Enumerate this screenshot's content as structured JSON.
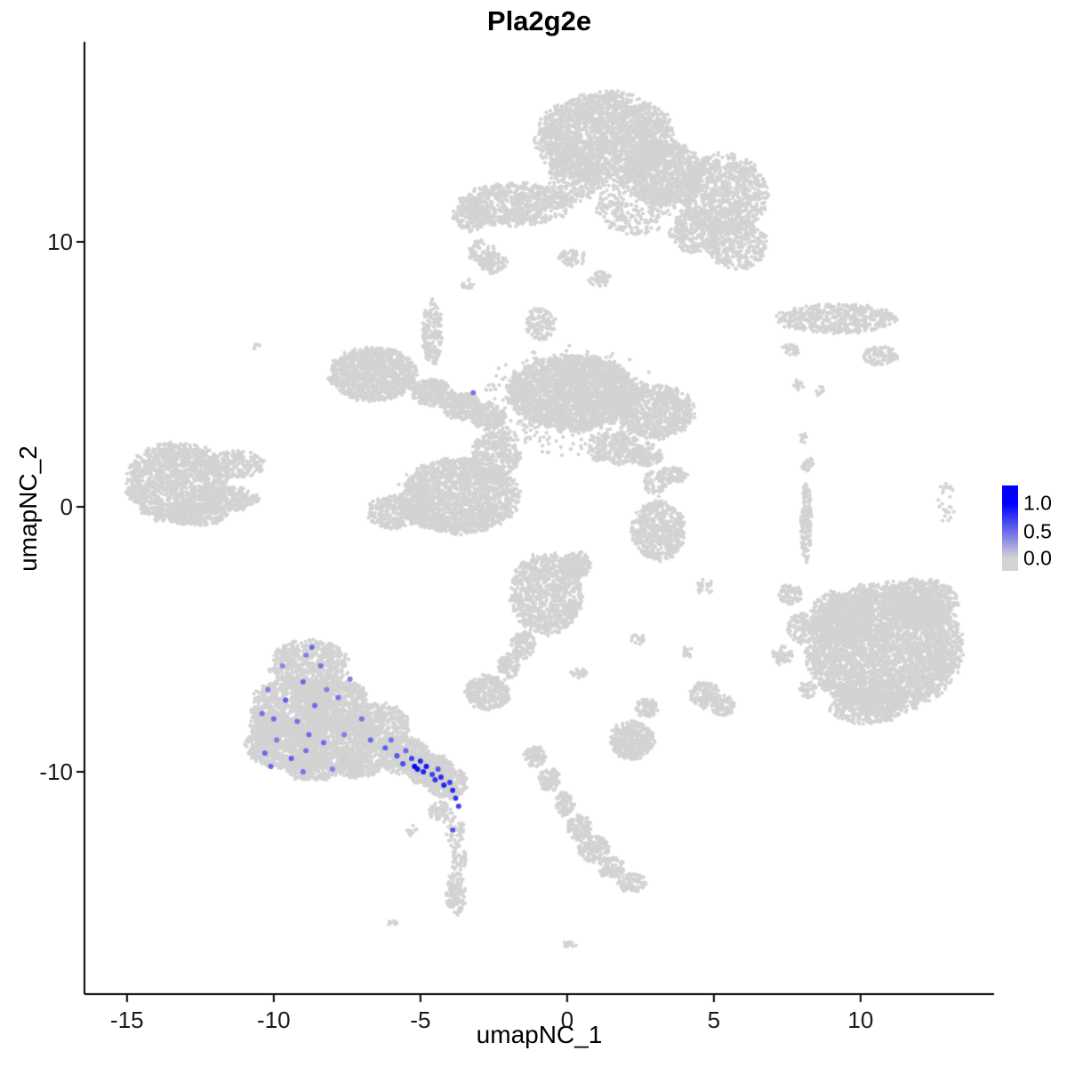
{
  "chart_data": {
    "type": "scatter",
    "title": "Pla2g2e",
    "xlabel": "umapNC_1",
    "ylabel": "umapNC_2",
    "xlim": [
      -16.45,
      14.55
    ],
    "ylim": [
      -18.39,
      17.55
    ],
    "x_ticks": [
      -15,
      -10,
      -5,
      0,
      5,
      10
    ],
    "y_ticks": [
      -10,
      0,
      10
    ],
    "grid": false,
    "axis_color": "#000000",
    "point_color_low": "#D3D3D3",
    "point_color_high": "#0000FF",
    "background_point_radius": 2.1,
    "expressing_point_radius": 3.0,
    "cluster_format": [
      "cx",
      "cy",
      "rx",
      "ry",
      "n"
    ],
    "background_clusters": [
      [
        1.3,
        13.9,
        2.3,
        1.7,
        2400
      ],
      [
        3.3,
        12.6,
        1.3,
        1.2,
        800
      ],
      [
        5.3,
        11.8,
        1.5,
        1.5,
        1000
      ],
      [
        5.8,
        9.9,
        1.0,
        0.9,
        350
      ],
      [
        4.4,
        10.4,
        0.9,
        0.8,
        300
      ],
      [
        -1.8,
        11.4,
        1.9,
        0.8,
        750
      ],
      [
        -3.3,
        11.0,
        0.6,
        0.6,
        150
      ],
      [
        0.3,
        12.4,
        0.9,
        0.9,
        250
      ],
      [
        2.3,
        11.3,
        1.3,
        1.0,
        300
      ],
      [
        -2.9,
        9.6,
        0.5,
        0.45,
        80
      ],
      [
        0.2,
        9.4,
        0.5,
        0.3,
        50
      ],
      [
        1.1,
        8.6,
        0.4,
        0.3,
        40
      ],
      [
        -2.5,
        9.2,
        0.5,
        0.4,
        80
      ],
      [
        -3.4,
        8.4,
        0.25,
        0.2,
        15
      ],
      [
        9.2,
        7.1,
        2.0,
        0.55,
        500
      ],
      [
        10.7,
        5.7,
        0.6,
        0.35,
        100
      ],
      [
        7.6,
        5.9,
        0.3,
        0.25,
        30
      ],
      [
        7.9,
        4.6,
        0.2,
        0.2,
        12
      ],
      [
        8.6,
        4.4,
        0.2,
        0.2,
        10
      ],
      [
        0.2,
        4.3,
        2.2,
        1.4,
        2600
      ],
      [
        3.0,
        3.6,
        1.3,
        1.0,
        700
      ],
      [
        -6.6,
        5.0,
        1.5,
        1.0,
        1100
      ],
      [
        -4.6,
        4.3,
        0.7,
        0.5,
        250
      ],
      [
        -3.6,
        3.8,
        0.7,
        0.5,
        250
      ],
      [
        -2.7,
        3.4,
        0.6,
        0.5,
        200
      ],
      [
        -4.6,
        6.6,
        0.35,
        1.2,
        180
      ],
      [
        -0.9,
        6.9,
        0.5,
        0.6,
        120
      ],
      [
        -3.7,
        0.4,
        2.0,
        1.4,
        1900
      ],
      [
        -5.9,
        -0.2,
        0.9,
        0.6,
        300
      ],
      [
        -2.4,
        2.0,
        0.8,
        0.9,
        350
      ],
      [
        1.6,
        2.2,
        0.9,
        0.6,
        250
      ],
      [
        2.7,
        1.9,
        0.6,
        0.35,
        120
      ],
      [
        3.6,
        1.2,
        0.5,
        0.3,
        80
      ],
      [
        0.1,
        4.0,
        3.0,
        2.0,
        350
      ],
      [
        -13.3,
        0.9,
        1.7,
        1.5,
        1500
      ],
      [
        -11.3,
        1.6,
        1.0,
        0.5,
        250
      ],
      [
        -11.4,
        0.3,
        0.9,
        0.45,
        220
      ],
      [
        -12.6,
        -0.3,
        1.0,
        0.4,
        200
      ],
      [
        -10.6,
        6.1,
        0.15,
        0.15,
        6
      ],
      [
        3.1,
        -0.9,
        0.9,
        1.1,
        550
      ],
      [
        3.0,
        0.9,
        0.4,
        0.5,
        60
      ],
      [
        4.7,
        -3.0,
        0.3,
        0.3,
        25
      ],
      [
        2.8,
        2.3,
        0.15,
        0.15,
        8
      ],
      [
        -0.7,
        -3.3,
        1.2,
        1.5,
        950
      ],
      [
        0.3,
        -2.2,
        0.5,
        0.5,
        150
      ],
      [
        -1.5,
        -5.2,
        0.4,
        0.5,
        120
      ],
      [
        -2.0,
        -6.0,
        0.35,
        0.45,
        100
      ],
      [
        -2.7,
        -7.0,
        0.75,
        0.65,
        350
      ],
      [
        0.4,
        -6.3,
        0.3,
        0.2,
        25
      ],
      [
        -1.1,
        -9.4,
        0.4,
        0.4,
        90
      ],
      [
        -0.6,
        -10.3,
        0.35,
        0.45,
        90
      ],
      [
        -0.1,
        -11.2,
        0.35,
        0.45,
        90
      ],
      [
        0.4,
        -12.1,
        0.4,
        0.5,
        110
      ],
      [
        0.9,
        -12.9,
        0.5,
        0.5,
        140
      ],
      [
        1.5,
        -13.6,
        0.45,
        0.4,
        100
      ],
      [
        2.2,
        -14.2,
        0.5,
        0.35,
        90
      ],
      [
        0.1,
        -16.5,
        0.25,
        0.2,
        15
      ],
      [
        -5.9,
        -15.7,
        0.2,
        0.15,
        8
      ],
      [
        2.2,
        -8.8,
        0.75,
        0.7,
        380
      ],
      [
        2.7,
        -7.6,
        0.4,
        0.35,
        80
      ],
      [
        2.4,
        -5.0,
        0.25,
        0.2,
        20
      ],
      [
        4.1,
        -5.5,
        0.2,
        0.2,
        15
      ],
      [
        -8.8,
        -6.0,
        1.3,
        1.0,
        650
      ],
      [
        -9.3,
        -7.6,
        1.5,
        1.1,
        1000
      ],
      [
        -8.0,
        -7.4,
        1.2,
        1.0,
        750
      ],
      [
        -9.5,
        -9.0,
        1.4,
        0.9,
        850
      ],
      [
        -7.8,
        -8.9,
        1.4,
        1.0,
        850
      ],
      [
        -6.4,
        -8.3,
        1.0,
        0.9,
        480
      ],
      [
        -5.6,
        -9.4,
        0.9,
        0.7,
        430
      ],
      [
        -4.7,
        -9.9,
        0.8,
        0.6,
        340
      ],
      [
        -4.1,
        -10.4,
        0.7,
        0.6,
        280
      ],
      [
        -8.7,
        -9.9,
        0.9,
        0.45,
        240
      ],
      [
        -7.2,
        -9.8,
        0.8,
        0.45,
        210
      ],
      [
        -10.3,
        -8.2,
        0.5,
        0.8,
        150
      ],
      [
        -4.3,
        -11.5,
        0.4,
        0.4,
        60
      ],
      [
        -3.8,
        -12.3,
        0.3,
        0.6,
        50
      ],
      [
        -3.7,
        -13.3,
        0.25,
        0.5,
        40
      ],
      [
        -3.8,
        -14.6,
        0.35,
        0.8,
        120
      ],
      [
        -5.3,
        -12.2,
        0.2,
        0.2,
        10
      ],
      [
        10.8,
        -5.3,
        2.6,
        2.4,
        4200
      ],
      [
        9.3,
        -4.2,
        1.0,
        1.0,
        500
      ],
      [
        12.1,
        -3.6,
        1.2,
        0.9,
        600
      ],
      [
        10.2,
        -7.6,
        1.2,
        0.6,
        350
      ],
      [
        8.0,
        -4.6,
        0.5,
        0.6,
        120
      ],
      [
        7.6,
        -3.3,
        0.4,
        0.4,
        70
      ],
      [
        7.3,
        -5.6,
        0.35,
        0.35,
        50
      ],
      [
        8.2,
        -6.9,
        0.3,
        0.3,
        40
      ],
      [
        8.15,
        -0.6,
        0.18,
        1.5,
        160
      ],
      [
        8.2,
        1.6,
        0.2,
        0.3,
        25
      ],
      [
        8.05,
        2.6,
        0.15,
        0.2,
        10
      ],
      [
        12.9,
        0.2,
        0.3,
        0.8,
        25
      ],
      [
        4.7,
        -7.1,
        0.5,
        0.5,
        150
      ],
      [
        5.3,
        -7.5,
        0.4,
        0.4,
        90
      ]
    ],
    "point_format": [
      "x",
      "y",
      "value"
    ],
    "expressing_points": [
      [
        -8.7,
        -5.3,
        0.5
      ],
      [
        -8.4,
        -6.0,
        0.45
      ],
      [
        -9.0,
        -6.6,
        0.5
      ],
      [
        -8.2,
        -6.9,
        0.4
      ],
      [
        -9.6,
        -7.3,
        0.55
      ],
      [
        -8.6,
        -7.5,
        0.5
      ],
      [
        -7.8,
        -7.2,
        0.45
      ],
      [
        -10.0,
        -8.0,
        0.5
      ],
      [
        -9.2,
        -8.1,
        0.45
      ],
      [
        -8.8,
        -8.6,
        0.5
      ],
      [
        -9.9,
        -8.8,
        0.4
      ],
      [
        -10.3,
        -9.3,
        0.5
      ],
      [
        -9.4,
        -9.5,
        0.55
      ],
      [
        -8.9,
        -9.2,
        0.45
      ],
      [
        -8.3,
        -8.9,
        0.5
      ],
      [
        -7.6,
        -8.6,
        0.4
      ],
      [
        -10.1,
        -9.8,
        0.5
      ],
      [
        -9.0,
        -10.0,
        0.45
      ],
      [
        -8.0,
        -9.9,
        0.4
      ],
      [
        -7.0,
        -8.0,
        0.45
      ],
      [
        -6.7,
        -8.8,
        0.5
      ],
      [
        -10.4,
        -7.8,
        0.45
      ],
      [
        -10.2,
        -6.9,
        0.4
      ],
      [
        -6.2,
        -9.1,
        0.55
      ],
      [
        -5.8,
        -9.4,
        0.6
      ],
      [
        -5.6,
        -9.7,
        0.65
      ],
      [
        -5.3,
        -9.5,
        0.7
      ],
      [
        -5.2,
        -9.8,
        1.0
      ],
      [
        -5.1,
        -9.9,
        0.95
      ],
      [
        -5.0,
        -9.6,
        0.8
      ],
      [
        -4.9,
        -10.0,
        0.85
      ],
      [
        -4.8,
        -9.8,
        0.9
      ],
      [
        -4.6,
        -10.1,
        0.7
      ],
      [
        -4.5,
        -10.3,
        0.75
      ],
      [
        -4.3,
        -10.2,
        0.8
      ],
      [
        -4.2,
        -10.5,
        0.85
      ],
      [
        -4.0,
        -10.4,
        0.7
      ],
      [
        -3.9,
        -10.7,
        0.8
      ],
      [
        -4.4,
        -9.9,
        0.6
      ],
      [
        -5.5,
        -9.2,
        0.5
      ],
      [
        -6.0,
        -8.8,
        0.45
      ],
      [
        -3.8,
        -11.0,
        0.75
      ],
      [
        -3.7,
        -11.3,
        0.7
      ],
      [
        -3.9,
        -12.2,
        0.6
      ],
      [
        -3.2,
        4.3,
        0.45
      ],
      [
        -7.4,
        -6.5,
        0.4
      ],
      [
        -8.9,
        -5.6,
        0.4
      ],
      [
        -9.7,
        -6.0,
        0.35
      ]
    ],
    "legend": {
      "labels": [
        "1.0",
        "0.5",
        "0.0"
      ],
      "positions": [
        0.21,
        0.537,
        0.853
      ],
      "color_high": "#0000FF",
      "color_low": "#D3D3D3",
      "position": "right"
    }
  }
}
